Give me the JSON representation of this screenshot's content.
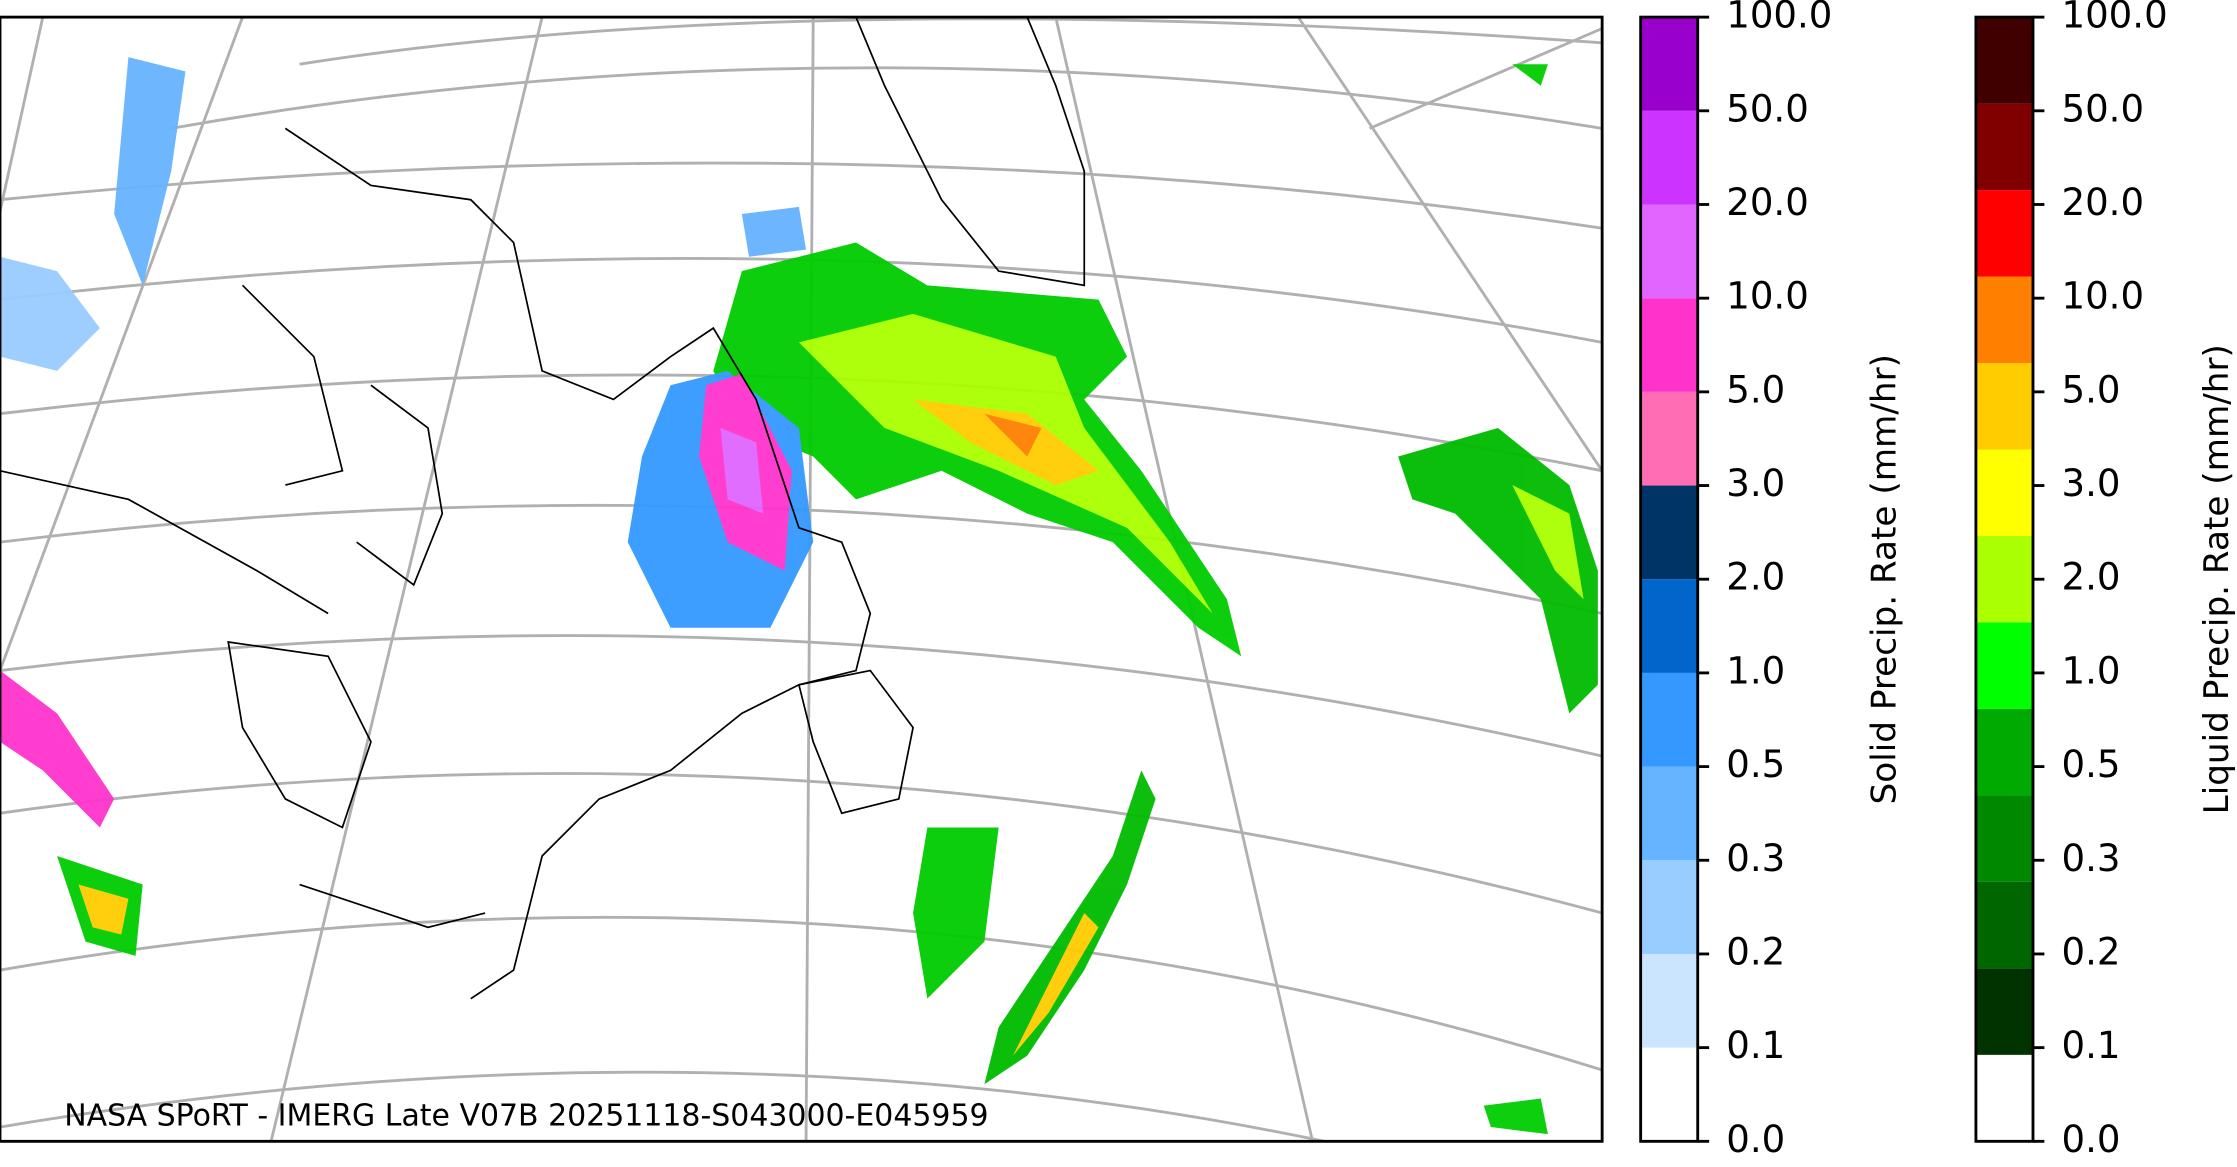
{
  "map": {
    "credit": "NASA SPoRT - IMERG Late V07B 20251118-S043000-E045959"
  },
  "colorbars": [
    {
      "label": "Solid Precip. Rate (mm/hr)",
      "ticks": [
        "0.0",
        "0.1",
        "0.2",
        "0.3",
        "0.5",
        "1.0",
        "2.0",
        "3.0",
        "5.0",
        "10.0",
        "20.0",
        "50.0",
        "100.0"
      ],
      "colors": [
        "#ffffff",
        "#cce5ff",
        "#99ccff",
        "#66b3ff",
        "#3399ff",
        "#0066cc",
        "#003366",
        "#ff6eb4",
        "#ff33cc",
        "#e066ff",
        "#cc33ff",
        "#9900cc"
      ]
    },
    {
      "label": "Liquid Precip. Rate (mm/hr)",
      "ticks": [
        "0.0",
        "0.1",
        "0.2",
        "0.3",
        "0.5",
        "1.0",
        "2.0",
        "3.0",
        "5.0",
        "10.0",
        "20.0",
        "50.0",
        "100.0"
      ],
      "colors": [
        "#ffffff",
        "#003300",
        "#006600",
        "#008800",
        "#00aa00",
        "#00ff00",
        "#aaff00",
        "#ffff00",
        "#ffcc00",
        "#ff8000",
        "#ff0000",
        "#800000",
        "#400000"
      ]
    }
  ]
}
